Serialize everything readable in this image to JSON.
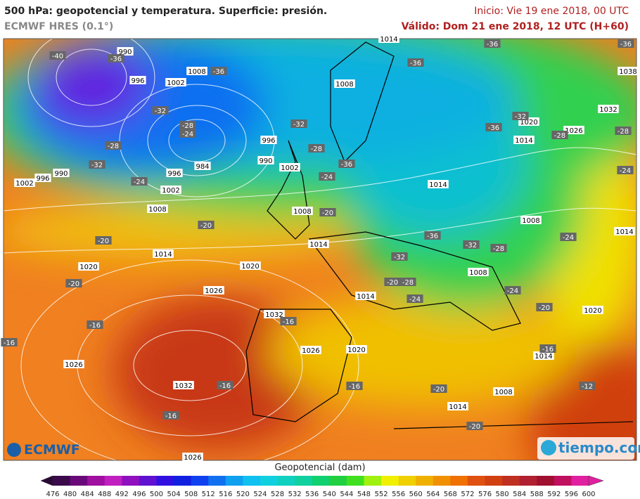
{
  "header": {
    "title": "500 hPa: geopotencial y temperatura. Superficie: presión.",
    "model": "ECMWF HRES (0.1°)",
    "init": "Inicio: Vie 19 ene 2018, 00 UTC",
    "valid": "Válido: Dom 21 ene 2018, 12 UTC (H+60)"
  },
  "map": {
    "pressure_labels": [
      "990",
      "996",
      "1002",
      "1008",
      "1008",
      "1014",
      "1038",
      "1032",
      "1020",
      "1026",
      "1014",
      "996",
      "990",
      "984",
      "1002",
      "996",
      "1002",
      "990",
      "996",
      "1002",
      "1008",
      "1008",
      "1014",
      "1014",
      "1014",
      "1008",
      "1014",
      "1020",
      "1020",
      "1026",
      "1032",
      "1014",
      "1008",
      "1020",
      "1014",
      "1026",
      "1020",
      "1026",
      "1032",
      "1008",
      "1014",
      "1026"
    ],
    "temperature_labels": [
      "-40",
      "-36",
      "-36",
      "-36",
      "-36",
      "-32",
      "-28",
      "-24",
      "-28",
      "-32",
      "-24",
      "-32",
      "-28",
      "-24",
      "-36",
      "-20",
      "-20",
      "-20",
      "-20",
      "-16",
      "-16",
      "-16",
      "-16",
      "-16",
      "-16",
      "-36",
      "-32",
      "-28",
      "-32",
      "-24",
      "-20",
      "-28",
      "-24",
      "-24",
      "-20",
      "-16",
      "-20",
      "-20",
      "-12",
      "-32",
      "-36",
      "-28",
      "-28",
      "-24",
      "-36"
    ]
  },
  "logos": {
    "left": "ECMWF",
    "right": "tiempo.com"
  },
  "colorbar": {
    "label": "Geopotencial (dam)",
    "ticks": [
      476,
      480,
      484,
      488,
      492,
      496,
      500,
      504,
      508,
      512,
      516,
      520,
      524,
      528,
      532,
      536,
      540,
      544,
      548,
      552,
      556,
      560,
      564,
      568,
      572,
      576,
      580,
      584,
      588,
      592,
      596,
      600
    ],
    "colors": [
      "#2a0836",
      "#3a0a4a",
      "#6a0a7a",
      "#a010a0",
      "#c020c0",
      "#9010c0",
      "#6010d0",
      "#3010e0",
      "#1020e0",
      "#1040f0",
      "#1070f0",
      "#10a0f0",
      "#10c0f0",
      "#10d0e0",
      "#10d0c0",
      "#10d0a0",
      "#10d070",
      "#20d040",
      "#40e020",
      "#a0f010",
      "#f0f000",
      "#f0d000",
      "#f0b000",
      "#f09000",
      "#f07000",
      "#e05010",
      "#d04010",
      "#c03020",
      "#b02030",
      "#a01030",
      "#c01060",
      "#e020a0",
      "#e020a0"
    ]
  }
}
